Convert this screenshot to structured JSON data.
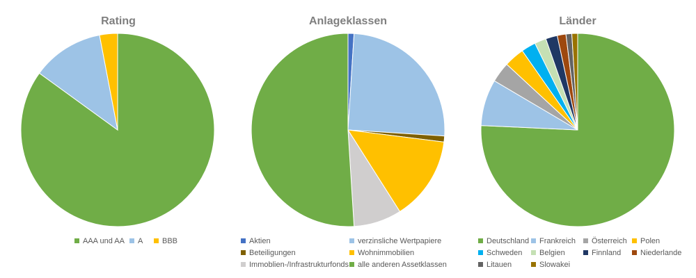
{
  "chart_data": [
    {
      "type": "pie",
      "title": "Rating",
      "slices": [
        {
          "label": "AAA und AA",
          "value": 85.0,
          "color": "#70ad47"
        },
        {
          "label": "A",
          "value": 12.0,
          "color": "#9dc3e6"
        },
        {
          "label": "BBB",
          "value": 3.0,
          "color": "#ffc000"
        }
      ],
      "legend": "bottom"
    },
    {
      "type": "pie",
      "title": "Anlageklassen",
      "slices": [
        {
          "label": "Aktien",
          "value": 1.0,
          "color": "#4472c4"
        },
        {
          "label": "verzinsliche Wertpapiere",
          "value": 25.0,
          "color": "#9dc3e6"
        },
        {
          "label": "Beteiligungen",
          "value": 1.0,
          "color": "#7f6000"
        },
        {
          "label": "Wohnimmobilien",
          "value": 14.0,
          "color": "#ffc000"
        },
        {
          "label": "Immoblien-/Infrastrukturfonds",
          "value": 8.0,
          "color": "#d0cece"
        },
        {
          "label": "alle anderen Assetklassen",
          "value": 51.0,
          "color": "#70ad47"
        }
      ],
      "legend": "bottom"
    },
    {
      "type": "pie",
      "title": "Länder",
      "slices": [
        {
          "label": "Deutschland",
          "value": 78.0,
          "color": "#70ad47"
        },
        {
          "label": "Frankreich",
          "value": 8.0,
          "color": "#9dc3e6"
        },
        {
          "label": "Österreich",
          "value": 3.5,
          "color": "#a5a5a5"
        },
        {
          "label": "Polen",
          "value": 3.5,
          "color": "#ffc000"
        },
        {
          "label": "Schweden",
          "value": 2.5,
          "color": "#00b0f0"
        },
        {
          "label": "Belgien",
          "value": 2.0,
          "color": "#c5e0b4"
        },
        {
          "label": "Finnland",
          "value": 2.0,
          "color": "#203864"
        },
        {
          "label": "Niederlande",
          "value": 1.5,
          "color": "#9e480e"
        },
        {
          "label": "Litauen",
          "value": 1.0,
          "color": "#636363"
        },
        {
          "label": "Slowakei",
          "value": 1.0,
          "color": "#997300"
        }
      ],
      "legend": "bottom"
    }
  ]
}
